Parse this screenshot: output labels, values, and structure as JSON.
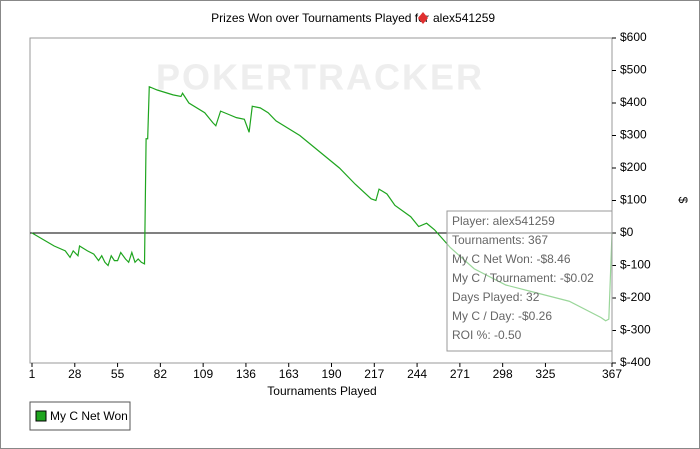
{
  "chart_data": {
    "type": "line",
    "title": "Prizes Won over Tournaments Played for",
    "player": "alex541259",
    "watermark": "POKERTRACKER",
    "xlabel": "Tournaments Played",
    "ylabel": "$",
    "xlim": [
      1,
      367
    ],
    "xticks": [
      1,
      28,
      55,
      82,
      109,
      136,
      163,
      190,
      217,
      244,
      271,
      298,
      325,
      367
    ],
    "ylim": [
      -400,
      600
    ],
    "yticks": [
      {
        "value": 600,
        "label": "$600"
      },
      {
        "value": 500,
        "label": "$500"
      },
      {
        "value": 400,
        "label": "$400"
      },
      {
        "value": 300,
        "label": "$300"
      },
      {
        "value": 200,
        "label": "$200"
      },
      {
        "value": 100,
        "label": "$100"
      },
      {
        "value": 0,
        "label": "$0"
      },
      {
        "value": -100,
        "label": "$-100"
      },
      {
        "value": -200,
        "label": "$-200"
      },
      {
        "value": -300,
        "label": "$-300"
      },
      {
        "value": -400,
        "label": "$-400"
      }
    ],
    "grid": false,
    "series": [
      {
        "name": "My C Net Won",
        "color": "#1fa51f",
        "x": [
          1,
          8,
          15,
          22,
          25,
          27,
          30,
          31,
          36,
          40,
          43,
          45,
          47,
          49,
          51,
          53,
          55,
          57,
          60,
          62,
          64,
          66,
          68,
          70,
          72,
          73,
          74,
          75,
          80,
          90,
          95,
          96,
          100,
          110,
          115,
          117,
          120,
          125,
          130,
          135,
          138,
          140,
          145,
          150,
          155,
          170,
          180,
          195,
          205,
          215,
          218,
          220,
          225,
          230,
          240,
          245,
          250,
          255,
          265,
          280,
          300,
          320,
          340,
          360,
          363,
          365,
          367
        ],
        "values": [
          0,
          -20,
          -40,
          -55,
          -75,
          -55,
          -70,
          -40,
          -55,
          -65,
          -85,
          -70,
          -90,
          -100,
          -70,
          -85,
          -85,
          -60,
          -80,
          -90,
          -60,
          -90,
          -80,
          -90,
          -95,
          290,
          290,
          450,
          440,
          425,
          420,
          430,
          400,
          370,
          340,
          330,
          375,
          365,
          355,
          350,
          310,
          390,
          385,
          370,
          345,
          300,
          260,
          200,
          150,
          105,
          100,
          135,
          120,
          85,
          50,
          20,
          30,
          10,
          -45,
          -110,
          -160,
          -185,
          -210,
          -260,
          -270,
          -265,
          0
        ]
      }
    ],
    "tooltip": [
      "Player: alex541259",
      "Tournaments: 367",
      "My C Net Won: -$8.46",
      "My C / Tournament: -$0.02",
      "Days Played: 32",
      "My C / Day: -$0.26",
      "ROI %: -0.50"
    ],
    "legend": "bottom-left"
  }
}
